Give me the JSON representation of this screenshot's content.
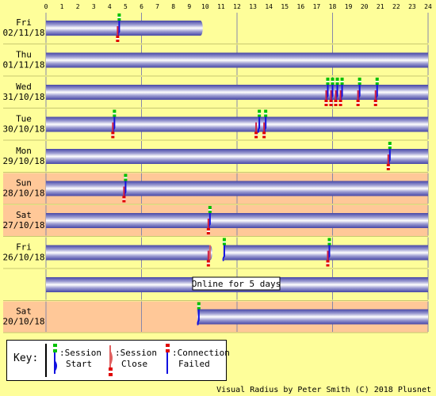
{
  "hours": [
    "0",
    "1",
    "2",
    "3",
    "4",
    "5",
    "6",
    "7",
    "8",
    "9",
    "10",
    "11",
    "12",
    "13",
    "14",
    "15",
    "16",
    "17",
    "18",
    "19",
    "20",
    "21",
    "22",
    "23",
    "24"
  ],
  "days": [
    {
      "label1": "Fri",
      "label2": "02/11/18",
      "weekend": false,
      "bars": [
        [
          0,
          9.7
        ]
      ],
      "markers": [
        {
          "t": "start",
          "h": 4.6
        },
        {
          "t": "fail",
          "h": 4.5
        }
      ]
    },
    {
      "label1": "Thu",
      "label2": "01/11/18",
      "weekend": false,
      "bars": [
        [
          0,
          24
        ]
      ],
      "markers": []
    },
    {
      "label1": "Wed",
      "label2": "31/10/18",
      "weekend": false,
      "bars": [
        [
          0,
          24
        ]
      ],
      "markers": [
        {
          "t": "start",
          "h": 17.7
        },
        {
          "t": "start",
          "h": 18.0
        },
        {
          "t": "start",
          "h": 18.3
        },
        {
          "t": "start",
          "h": 18.6
        },
        {
          "t": "start",
          "h": 19.7
        },
        {
          "t": "start",
          "h": 20.8
        },
        {
          "t": "fail",
          "h": 17.6
        },
        {
          "t": "fail",
          "h": 17.9
        },
        {
          "t": "fail",
          "h": 18.2
        },
        {
          "t": "fail",
          "h": 18.5
        },
        {
          "t": "fail",
          "h": 19.6
        },
        {
          "t": "fail",
          "h": 20.7
        }
      ]
    },
    {
      "label1": "Tue",
      "label2": "30/10/18",
      "weekend": false,
      "bars": [
        [
          0,
          24
        ]
      ],
      "markers": [
        {
          "t": "start",
          "h": 4.3
        },
        {
          "t": "fail",
          "h": 4.2
        },
        {
          "t": "start",
          "h": 13.4
        },
        {
          "t": "fail",
          "h": 13.2
        },
        {
          "t": "start",
          "h": 13.8
        },
        {
          "t": "fail",
          "h": 13.7
        }
      ]
    },
    {
      "label1": "Mon",
      "label2": "29/10/18",
      "weekend": false,
      "bars": [
        [
          0,
          24
        ]
      ],
      "markers": [
        {
          "t": "start",
          "h": 21.6
        },
        {
          "t": "fail",
          "h": 21.5
        }
      ]
    },
    {
      "label1": "Sun",
      "label2": "28/10/18",
      "weekend": true,
      "bars": [
        [
          0,
          24
        ]
      ],
      "markers": [
        {
          "t": "start",
          "h": 5.0
        },
        {
          "t": "fail",
          "h": 4.9
        }
      ]
    },
    {
      "label1": "Sat",
      "label2": "27/10/18",
      "weekend": true,
      "bars": [
        [
          0,
          24
        ]
      ],
      "markers": [
        {
          "t": "start",
          "h": 10.3
        },
        {
          "t": "fail",
          "h": 10.2
        }
      ]
    },
    {
      "label1": "Fri",
      "label2": "26/10/18",
      "weekend": false,
      "bars": [
        [
          0,
          10.3
        ],
        [
          11.2,
          24
        ]
      ],
      "markers": [
        {
          "t": "close",
          "h": 10.3
        },
        {
          "t": "fail",
          "h": 10.2
        },
        {
          "t": "start",
          "h": 11.2
        },
        {
          "t": "start",
          "h": 17.8
        },
        {
          "t": "fail",
          "h": 17.7
        }
      ]
    },
    {
      "label1": "",
      "label2": "",
      "weekend": false,
      "bars": [
        [
          0,
          24
        ]
      ],
      "markers": [],
      "note": "Online for 5 days"
    },
    {
      "label1": "Sat",
      "label2": "20/10/18",
      "weekend": true,
      "bars": [
        [
          9.5,
          24
        ]
      ],
      "markers": [
        {
          "t": "start",
          "h": 9.6
        }
      ]
    }
  ],
  "key": {
    "title": "Key:",
    "items": [
      {
        "l1": ":Session",
        "l2": "Start"
      },
      {
        "l1": ":Session",
        "l2": "Close"
      },
      {
        "l1": ":Connection",
        "l2": "Failed"
      }
    ]
  },
  "credit": "Visual Radius by Peter Smith (C) 2018 Plusnet",
  "colors": {
    "bg": "#fefe9a",
    "weekend": "#ffc898",
    "bar_dark": "#4646a6",
    "bar_light": "#ffffff",
    "green": "#00c000",
    "blue": "#1010e0",
    "red": "#e00000",
    "grid": "#8888aa"
  }
}
